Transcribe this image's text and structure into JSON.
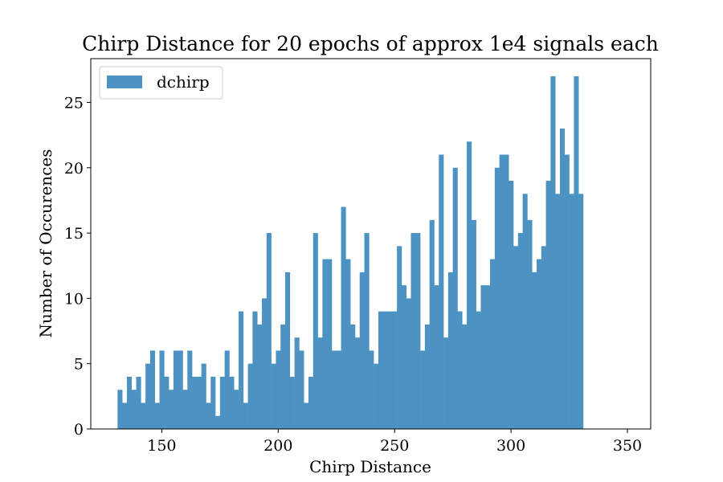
{
  "chart_data": {
    "type": "bar",
    "title": "Chirp Distance for 20 epochs of approx 1e4 signals each",
    "xlabel": "Chirp Distance",
    "ylabel": "Number of Occurences",
    "xlim": [
      119.5,
      360
    ],
    "ylim": [
      0,
      28.35
    ],
    "xticks": [
      150,
      200,
      250,
      300,
      350
    ],
    "yticks": [
      0,
      5,
      10,
      15,
      20,
      25
    ],
    "bar_color": "#4c93c4",
    "legend": {
      "position": "top-left",
      "entries": [
        "dchirp"
      ]
    },
    "grid": false,
    "series": [
      {
        "name": "dchirp",
        "bin_start": 131,
        "bin_width": 2,
        "values": [
          3,
          2,
          4,
          3,
          4,
          2,
          5,
          6,
          2,
          6,
          4,
          3,
          6,
          6,
          3,
          6,
          4,
          4,
          5,
          2,
          4,
          1,
          4,
          6,
          4,
          3,
          9,
          2,
          5,
          9,
          8,
          10,
          15,
          5,
          6,
          8,
          12,
          4,
          7,
          6,
          2,
          4,
          15,
          7,
          13,
          13,
          6,
          6,
          17,
          13,
          8,
          7,
          12,
          15,
          6,
          5,
          9,
          9,
          9,
          9,
          14,
          11,
          10,
          15,
          15,
          6,
          8,
          16,
          11,
          21,
          7,
          12,
          20,
          9,
          8,
          22,
          16,
          9,
          11,
          11,
          13,
          20,
          21,
          21,
          19,
          14,
          15,
          18,
          16,
          12,
          13,
          14,
          19,
          27,
          18,
          23,
          21,
          18,
          27,
          18
        ]
      }
    ]
  }
}
